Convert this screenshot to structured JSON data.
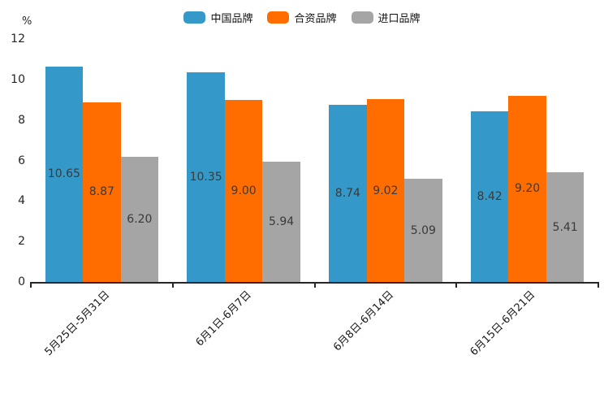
{
  "chart_data": {
    "type": "bar",
    "title": "",
    "xlabel": "",
    "ylabel": "%",
    "ylim": [
      0,
      12
    ],
    "y_ticks": [
      0,
      2,
      4,
      6,
      8,
      10,
      12
    ],
    "grid": false,
    "legend_position": "top",
    "categories": [
      "5月25日-5月31日",
      "6月1日-6月7日",
      "6月8日-6月14日",
      "6月15日-6月21日"
    ],
    "series": [
      {
        "name": "中国品牌",
        "color": "#3499C9",
        "values": [
          10.65,
          10.35,
          8.74,
          8.42
        ]
      },
      {
        "name": "合资品牌",
        "color": "#FF6D00",
        "values": [
          8.87,
          9.0,
          9.02,
          9.2
        ]
      },
      {
        "name": "进口品牌",
        "color": "#A5A5A5",
        "values": [
          6.2,
          5.94,
          5.09,
          5.41
        ]
      }
    ],
    "value_label_format": "0.00",
    "colors": {
      "axis": "#262626",
      "value_label": "#3A3A3A",
      "background": "#FFFFFF"
    }
  }
}
